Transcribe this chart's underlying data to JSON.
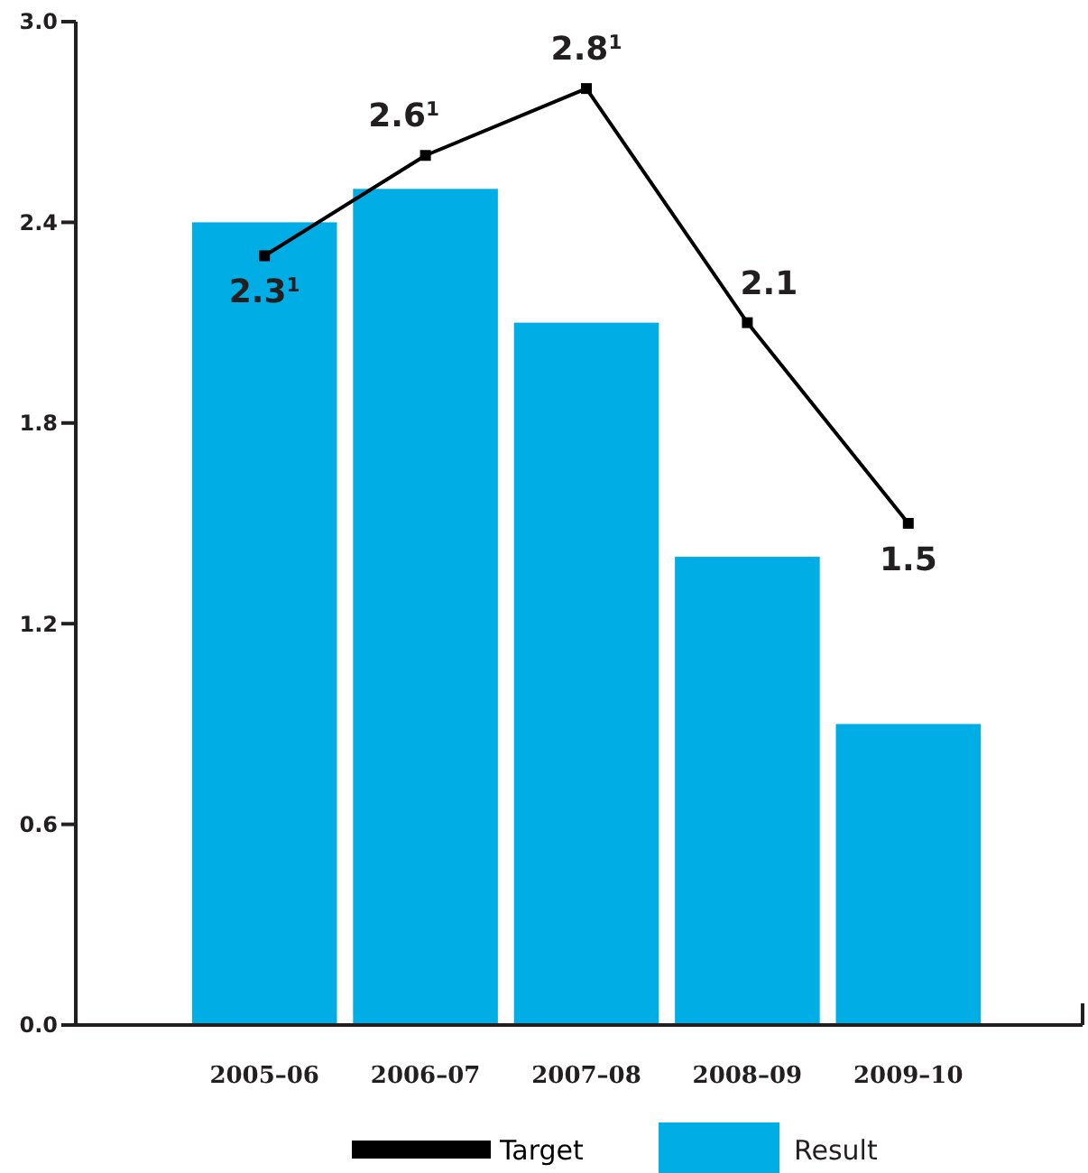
{
  "chart_data": {
    "type": "bar",
    "categories": [
      "2005–06",
      "2006–07",
      "2007–08",
      "2008–09",
      "2009–10"
    ],
    "series": [
      {
        "name": "Result",
        "color": "#00aee5",
        "values": [
          2.4,
          2.5,
          2.1,
          1.4,
          0.9
        ]
      },
      {
        "name": "Target",
        "type": "line",
        "color": "#000000",
        "marker": "square",
        "values": [
          2.3,
          2.6,
          2.8,
          2.1,
          1.5
        ],
        "value_labels": [
          "2.3$^{1}$",
          "2.6$^{1}$",
          "2.8$^{1}$",
          "2.1",
          "1.5"
        ]
      }
    ],
    "ylim": [
      0,
      3
    ],
    "yticks": [
      {
        "value": 0,
        "label": "0.0"
      },
      0.6,
      1.2,
      1.8,
      2.4,
      {
        "value": 3,
        "label": "3.0"
      }
    ],
    "grid": false,
    "legend": "bottom"
  }
}
